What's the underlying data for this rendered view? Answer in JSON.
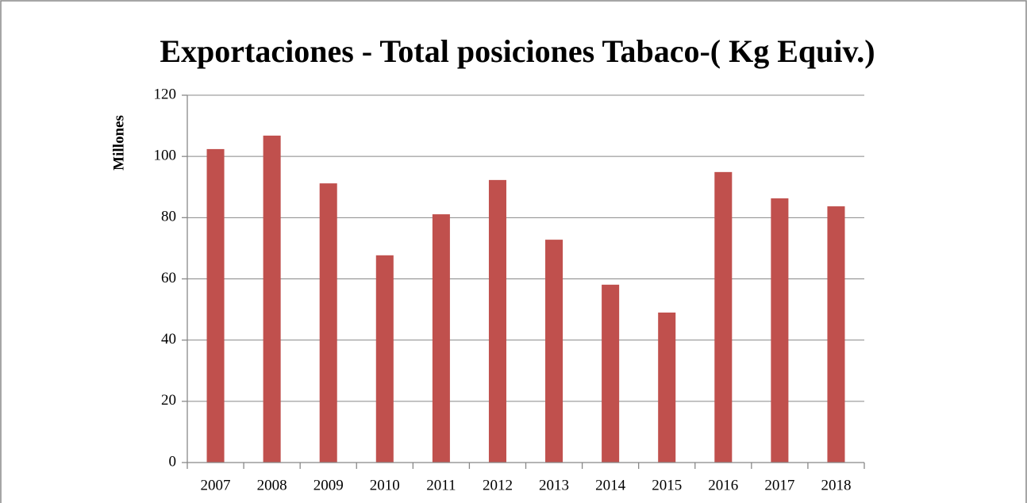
{
  "chart_data": {
    "type": "bar",
    "title": "Exportaciones - Total posiciones Tabaco-( Kg Equiv.)",
    "y_axis_label": "Millones",
    "categories": [
      "2007",
      "2008",
      "2009",
      "2010",
      "2011",
      "2012",
      "2013",
      "2014",
      "2015",
      "2016",
      "2017",
      "2018"
    ],
    "values": [
      102.4,
      106.8,
      91.2,
      67.7,
      81.1,
      92.3,
      72.8,
      58.1,
      49,
      94.9,
      86.3,
      83.7
    ],
    "color": "#c0504d",
    "ylim": [
      0,
      120
    ],
    "yticks": [
      0,
      20,
      40,
      60,
      80,
      100,
      120
    ],
    "grid": true
  }
}
